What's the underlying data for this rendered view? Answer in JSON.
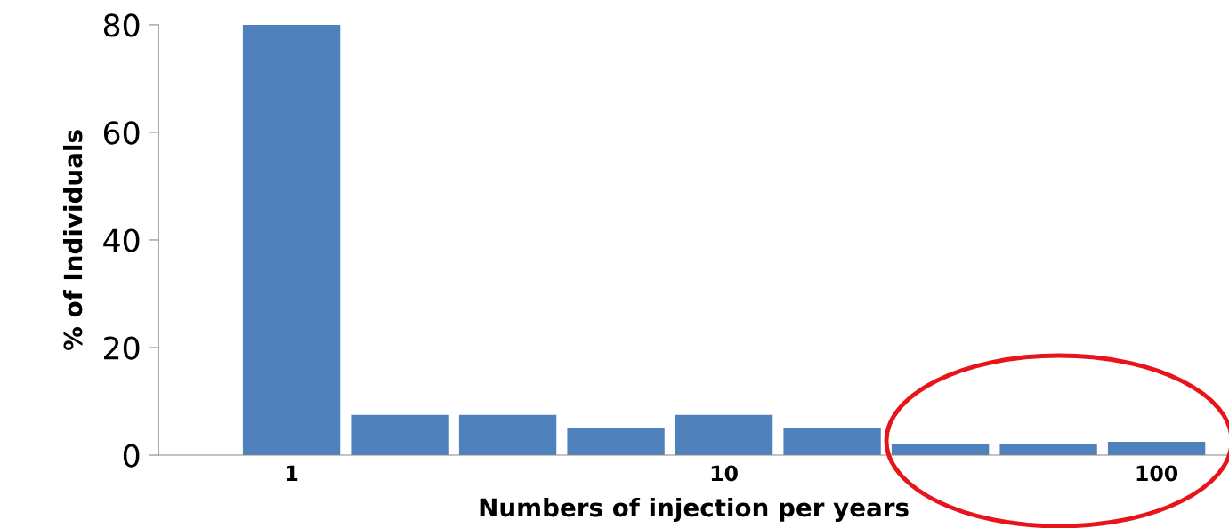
{
  "chart_data": {
    "type": "bar",
    "xlabel": "Numbers of injection per years",
    "ylabel": "% of Individuals",
    "categories": [
      "1",
      null,
      null,
      null,
      "10",
      null,
      null,
      null,
      "100"
    ],
    "values": [
      80,
      7.5,
      7.5,
      5,
      7.5,
      5,
      2,
      2,
      2.5
    ],
    "color": "#4f81bd",
    "ylim": [
      0,
      80
    ],
    "yticks": [
      0,
      20,
      40,
      60,
      80
    ],
    "grid": false
  }
}
